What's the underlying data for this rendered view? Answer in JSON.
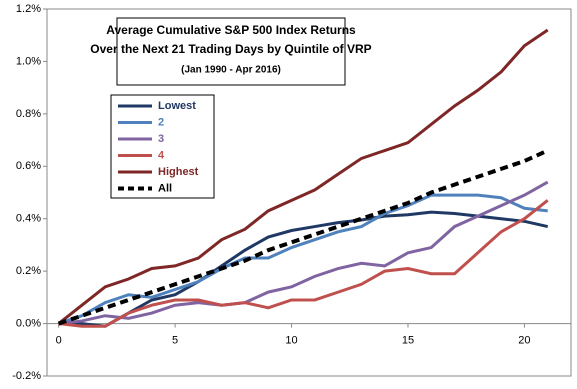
{
  "chart_data": {
    "type": "line",
    "title": [
      "Average Cumulative S&P 500 Index Returns",
      "Over the Next 21 Trading Days by Quintile of VRP"
    ],
    "subtitle": "(Jan 1990 - Apr 2016)",
    "x": [
      0,
      1,
      2,
      3,
      4,
      5,
      6,
      7,
      8,
      9,
      10,
      11,
      12,
      13,
      14,
      15,
      16,
      17,
      18,
      19,
      20,
      21
    ],
    "series": [
      {
        "name": "Lowest",
        "color": "#1f3864",
        "values": [
          0,
          0.0,
          -0.01,
          0.04,
          0.09,
          0.11,
          0.16,
          0.22,
          0.28,
          0.33,
          0.355,
          0.37,
          0.385,
          0.395,
          0.41,
          0.415,
          0.425,
          0.42,
          0.41,
          0.4,
          0.39,
          0.37
        ]
      },
      {
        "name": "2",
        "color": "#4f81bd",
        "values": [
          0,
          0.03,
          0.08,
          0.11,
          0.1,
          0.13,
          0.16,
          0.21,
          0.25,
          0.25,
          0.29,
          0.32,
          0.35,
          0.37,
          0.42,
          0.45,
          0.49,
          0.49,
          0.49,
          0.48,
          0.44,
          0.43
        ]
      },
      {
        "name": "3",
        "color": "#8064a2",
        "values": [
          0,
          0.01,
          0.03,
          0.02,
          0.04,
          0.07,
          0.08,
          0.07,
          0.08,
          0.12,
          0.14,
          0.18,
          0.21,
          0.23,
          0.22,
          0.27,
          0.29,
          0.37,
          0.41,
          0.45,
          0.49,
          0.54
        ]
      },
      {
        "name": "4",
        "color": "#c0504d",
        "values": [
          0,
          -0.01,
          -0.01,
          0.04,
          0.07,
          0.09,
          0.09,
          0.07,
          0.08,
          0.06,
          0.09,
          0.09,
          0.12,
          0.15,
          0.2,
          0.21,
          0.19,
          0.19,
          0.27,
          0.35,
          0.4,
          0.47
        ]
      },
      {
        "name": "Highest",
        "color": "#7f2626",
        "values": [
          0,
          0.07,
          0.14,
          0.17,
          0.21,
          0.22,
          0.25,
          0.32,
          0.36,
          0.43,
          0.47,
          0.51,
          0.57,
          0.63,
          0.66,
          0.69,
          0.76,
          0.83,
          0.89,
          0.96,
          1.06,
          1.12
        ]
      },
      {
        "name": "All",
        "color": "#000000",
        "style": "dashed",
        "values": [
          0,
          0.03,
          0.06,
          0.09,
          0.12,
          0.15,
          0.18,
          0.21,
          0.24,
          0.28,
          0.31,
          0.34,
          0.37,
          0.4,
          0.43,
          0.46,
          0.5,
          0.53,
          0.56,
          0.59,
          0.62,
          0.66
        ]
      }
    ],
    "xlim": [
      -0.5,
      22
    ],
    "xticks": [
      0,
      5,
      10,
      15,
      20
    ],
    "ylim": [
      -0.2,
      1.2
    ],
    "yticks": [
      {
        "value": -0.2,
        "label": "-0.2%"
      },
      {
        "value": 0,
        "label": "0.0%"
      },
      {
        "value": 0.2,
        "label": "0.2%"
      },
      {
        "value": 0.4,
        "label": "0.4%"
      },
      {
        "value": 0.6,
        "label": "0.6%"
      },
      {
        "value": 0.8,
        "label": "0.8%"
      },
      {
        "value": 1.0,
        "label": "1.0%"
      },
      {
        "value": 1.2,
        "label": "1.2%"
      }
    ],
    "grid": false
  }
}
